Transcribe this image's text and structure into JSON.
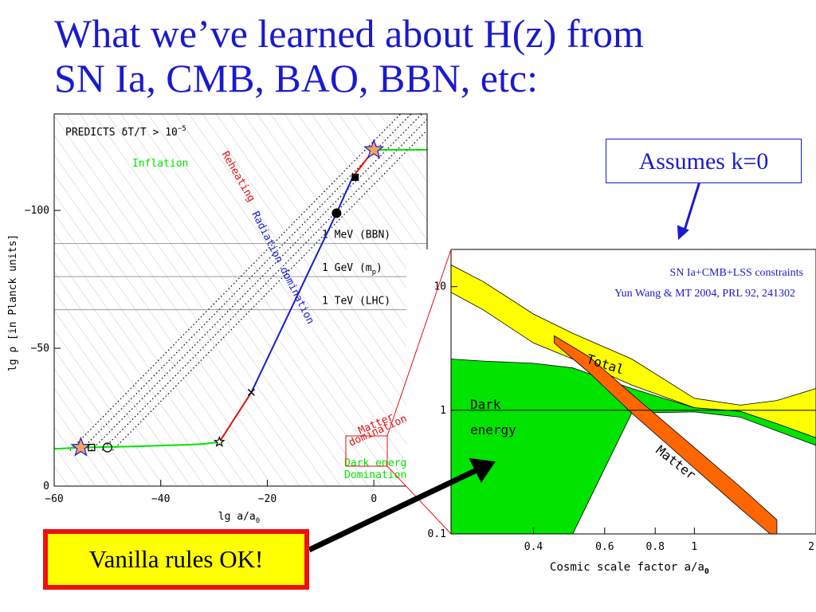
{
  "slide": {
    "title_line1": "What we’ve learned about H(z) from",
    "title_line2": "SN Ia, CMB, BAO, BBN, etc:",
    "note": "Assumes k=0",
    "callout": "Vanilla rules OK!"
  },
  "colors": {
    "title": "#1a1acd",
    "yellow": "#ffff00",
    "green": "#00e400",
    "orange": "#ff6600",
    "red": "#e11111",
    "blue": "#1a1acd"
  },
  "chart_data": [
    {
      "type": "line",
      "xlabel": "lg a/a",
      "xlabel_sub": "0",
      "ylabel": "lg ρ [in Planck units]",
      "xlim": [
        -60,
        10
      ],
      "ylim": [
        -135,
        0
      ],
      "xticks": [
        -60,
        -40,
        -20,
        0
      ],
      "xtick_labels": [
        "−60",
        "−40",
        "−20",
        "0"
      ],
      "yticks": [
        0,
        -50,
        -100
      ],
      "ytick_labels": [
        "0",
        "−50",
        "−100"
      ],
      "band_label": "PREDICTS δT/T > 10",
      "band_label_sup": "−5",
      "band_ylim": [
        0,
        -12
      ],
      "energy_scales": [
        {
          "label": "1 TeV (LHC)",
          "y": -64
        },
        {
          "label": "1 GeV (m",
          "label_sub": "p",
          "label_end": ")",
          "y": -76
        },
        {
          "label": "1 MeV (BBN)",
          "y": -88
        }
      ],
      "series": [
        {
          "name": "Inflation",
          "color": "#00e400",
          "x": [
            -60,
            -55,
            -50,
            -45,
            -40,
            -35,
            -32,
            -29
          ],
          "y": [
            -13.5,
            -14,
            -14.2,
            -14.4,
            -14.7,
            -15,
            -15.3,
            -16
          ]
        },
        {
          "name": "Reheating",
          "color": "#e11111",
          "x": [
            -29,
            -23
          ],
          "y": [
            -16,
            -34
          ]
        },
        {
          "name": "Radiation domination",
          "color": "#1a1acd",
          "x": [
            -23,
            -7,
            -4
          ],
          "y": [
            -34,
            -99,
            -112
          ]
        },
        {
          "name": "Matter domination",
          "color": "#e11111",
          "x": [
            -4,
            0
          ],
          "y": [
            -112,
            -122
          ]
        },
        {
          "name": "Dark energy Domination",
          "color": "#00e400",
          "x": [
            0,
            12
          ],
          "y": [
            -122,
            -122
          ]
        }
      ],
      "dotted_tracks_x_start": [
        -57,
        -55,
        -53,
        -51,
        -49
      ],
      "dotted_tracks_y_start": -13,
      "markers": [
        {
          "kind": "star",
          "x": -55,
          "y": -14
        },
        {
          "kind": "square",
          "x": -53,
          "y": -14
        },
        {
          "kind": "circle",
          "x": -50,
          "y": -14
        },
        {
          "kind": "small-star",
          "x": -29,
          "y": -16
        },
        {
          "kind": "cross",
          "x": -23,
          "y": -34
        },
        {
          "kind": "dot",
          "x": -7,
          "y": -99
        },
        {
          "kind": "filled-square",
          "x": -3.5,
          "y": -112
        },
        {
          "kind": "star",
          "x": 0,
          "y": -122
        }
      ]
    },
    {
      "type": "area",
      "xlabel": "Cosmic scale factor a/a",
      "xlabel_sub": "0",
      "xscale": "log",
      "yscale": "log",
      "xlim": [
        0.25,
        2
      ],
      "ylim": [
        0.1,
        20
      ],
      "xticks": [
        0.4,
        0.6,
        0.8,
        1,
        2
      ],
      "xtick_labels": [
        "0.4",
        "0.6",
        "0.8",
        "1",
        "2"
      ],
      "yticks": [
        0.1,
        1,
        10
      ],
      "ytick_labels": [
        "0.1",
        "1",
        "10"
      ],
      "annotation_1": "SN Ia+CMB+LSS constraints",
      "annotation_2": "Yun Wang & MT 2004, PRL 92, 241302",
      "series": [
        {
          "name": "Total",
          "x": [
            0.25,
            0.3,
            0.4,
            0.5,
            0.7,
            1,
            1.3,
            1.6,
            2
          ],
          "y_upper": [
            15,
            11,
            6,
            4.2,
            2.6,
            1.25,
            1.1,
            1.2,
            1.5
          ],
          "y_lower": [
            9,
            6.5,
            3.5,
            2.6,
            1.6,
            1.05,
            0.95,
            0.7,
            0.55
          ]
        },
        {
          "name": "Dark energy",
          "x": [
            0.25,
            0.3,
            0.4,
            0.5,
            0.7,
            1,
            1.3,
            1.6,
            2
          ],
          "y_upper": [
            2.6,
            2.5,
            2.4,
            2.2,
            1.5,
            1.05,
            0.98,
            0.78,
            0.6
          ],
          "y_lower": [
            0.1,
            0.1,
            0.1,
            0.1,
            0.95,
            0.97,
            0.88,
            0.68,
            0.52
          ]
        },
        {
          "name": "Matter",
          "x": [
            0.45,
            0.55,
            0.7,
            1,
            1.3,
            1.6
          ],
          "y_upper": [
            4.0,
            2.7,
            1.35,
            0.5,
            0.24,
            0.13
          ],
          "y_lower": [
            3.5,
            2.0,
            0.95,
            0.34,
            0.16,
            0.09
          ]
        }
      ]
    }
  ]
}
